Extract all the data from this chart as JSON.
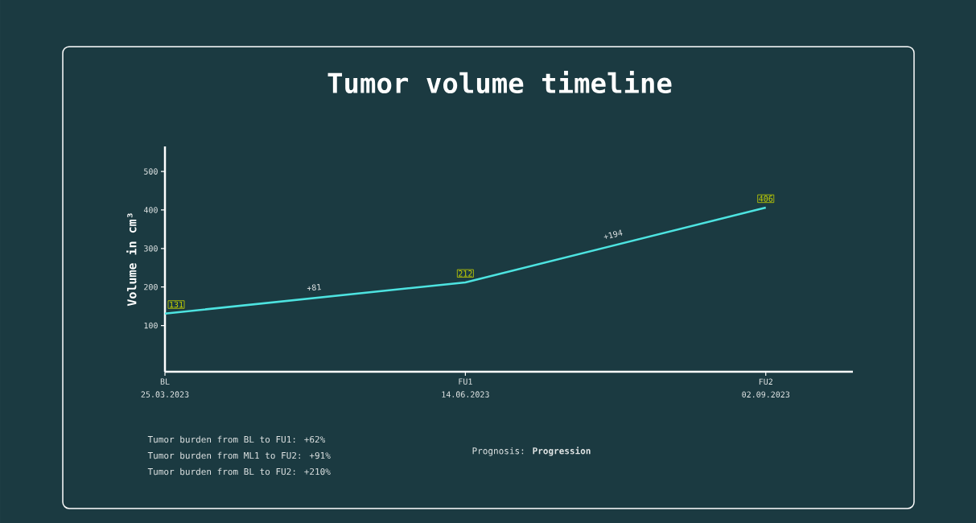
{
  "chart_data": {
    "type": "line",
    "title": "Tumor volume timeline",
    "ylabel": "Volume in cm³",
    "categories": [
      "BL 25.03.2023",
      "FU1 14.06.2023",
      "FU2 02.09.2023"
    ],
    "values": [
      131,
      212,
      406
    ],
    "color": "#4de3e0",
    "data_labels": true,
    "marker": "none",
    "line_style": "solid",
    "ylim": [
      -20,
      565
    ],
    "yticks": [
      100,
      200,
      300,
      400,
      500
    ],
    "annotations": [
      {
        "text": "+81",
        "y": 171
      },
      {
        "text": "+194",
        "y": 309
      },
      "Tumor burden from BL to FU1: +62%",
      "Tumor burden from ML1 to FU2: +91%",
      "Tumor burden from BL to FU2: +210%",
      "Prognosis: **Progression**"
    ]
  }
}
